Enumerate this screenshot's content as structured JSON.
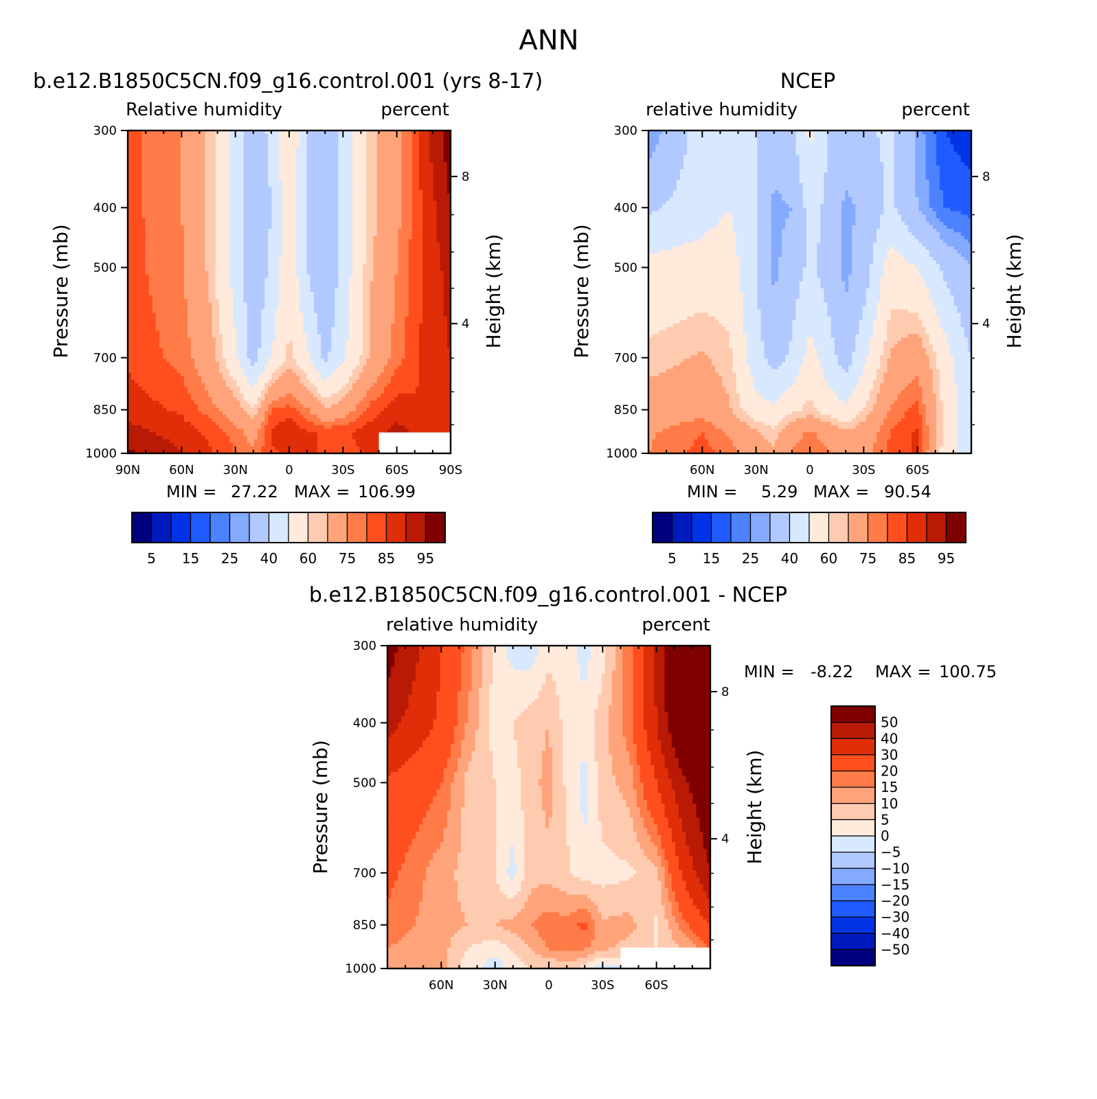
{
  "figure_title": "ANN",
  "chart_data": [
    {
      "type": "heatmap",
      "title": "b.e12.B1850C5CN.f09_g16.control.001 (yrs 8-17)",
      "left_label": "Relative humidity",
      "right_label": "percent",
      "ylabel": "Pressure (mb)",
      "y2label": "Height (km)",
      "pressure_ticks": [
        300,
        400,
        500,
        700,
        850,
        1000
      ],
      "pressure_range": [
        300,
        1000
      ],
      "height_ticks": [
        8,
        4
      ],
      "x_ticks": [
        "90N",
        "60N",
        "30N",
        "0",
        "30S",
        "60S",
        "90S"
      ],
      "x_range": [
        "90N",
        "90S"
      ],
      "stats": {
        "min_label": "MIN =",
        "min": "27.22",
        "max_label": "MAX =",
        "max": "106.99"
      },
      "colorbar": {
        "orientation": "horizontal",
        "levels": [
          5,
          10,
          15,
          20,
          25,
          30,
          40,
          50,
          60,
          65,
          75,
          80,
          85,
          90,
          95
        ],
        "tick_labels": [
          "5",
          "15",
          "25",
          "40",
          "60",
          "75",
          "85",
          "95"
        ]
      },
      "field": {
        "lat": [
          90,
          60,
          45,
          30,
          20,
          10,
          0,
          -10,
          -20,
          -30,
          -45,
          -60,
          -75,
          -90
        ],
        "pressure": [
          300,
          400,
          500,
          700,
          850,
          925,
          1000
        ],
        "values": [
          [
            82,
            75,
            64,
            45,
            35,
            42,
            60,
            40,
            35,
            42,
            62,
            72,
            88,
            98
          ],
          [
            82,
            75,
            64,
            45,
            32,
            40,
            58,
            40,
            30,
            42,
            62,
            73,
            86,
            95
          ],
          [
            82,
            76,
            64,
            46,
            32,
            42,
            58,
            40,
            30,
            44,
            64,
            75,
            86,
            92
          ],
          [
            84,
            78,
            70,
            52,
            36,
            50,
            62,
            52,
            38,
            48,
            66,
            78,
            86,
            90
          ],
          [
            88,
            84,
            78,
            70,
            60,
            80,
            82,
            76,
            66,
            70,
            82,
            88,
            85,
            86
          ],
          [
            92,
            88,
            84,
            78,
            72,
            86,
            90,
            86,
            84,
            84,
            88,
            92,
            88,
            86
          ],
          [
            96,
            90,
            86,
            80,
            76,
            84,
            86,
            86,
            84,
            82,
            86,
            92,
            88,
            86
          ]
        ],
        "masked_region": {
          "lat_from": -50,
          "lat_to": -90,
          "pressure_from": 925,
          "pressure_to": 1000
        }
      }
    },
    {
      "type": "heatmap",
      "title": "NCEP",
      "left_label": "relative humidity",
      "right_label": "percent",
      "ylabel": "Pressure (mb)",
      "y2label": "Height (km)",
      "pressure_ticks": [
        300,
        400,
        500,
        700,
        850,
        1000
      ],
      "pressure_range": [
        300,
        1000
      ],
      "height_ticks": [
        8,
        4
      ],
      "x_ticks": [
        "60N",
        "30N",
        "0",
        "30S",
        "60S"
      ],
      "x_range": [
        "90N",
        "90S"
      ],
      "stats": {
        "min_label": "MIN =",
        "min": "5.29",
        "max_label": "MAX =",
        "max": "90.54"
      },
      "colorbar": {
        "orientation": "horizontal",
        "levels": [
          5,
          10,
          15,
          20,
          25,
          30,
          40,
          50,
          60,
          65,
          75,
          80,
          85,
          90,
          95
        ],
        "tick_labels": [
          "5",
          "15",
          "25",
          "40",
          "60",
          "75",
          "85",
          "95"
        ]
      },
      "field": {
        "lat": [
          90,
          60,
          45,
          30,
          20,
          10,
          0,
          -10,
          -20,
          -30,
          -45,
          -60,
          -75,
          -90
        ],
        "pressure": [
          300,
          400,
          500,
          700,
          850,
          925,
          1000
        ],
        "values": [
          [
            25,
            45,
            45,
            40,
            35,
            38,
            52,
            40,
            35,
            38,
            42,
            28,
            15,
            12
          ],
          [
            38,
            46,
            50,
            40,
            28,
            30,
            44,
            38,
            28,
            32,
            42,
            30,
            20,
            18
          ],
          [
            54,
            55,
            56,
            40,
            28,
            35,
            42,
            36,
            28,
            34,
            56,
            50,
            38,
            30
          ],
          [
            62,
            66,
            62,
            44,
            36,
            42,
            54,
            45,
            35,
            48,
            66,
            72,
            55,
            40
          ],
          [
            70,
            72,
            66,
            54,
            52,
            58,
            62,
            56,
            52,
            60,
            76,
            82,
            58,
            42
          ],
          [
            74,
            80,
            74,
            66,
            62,
            72,
            76,
            72,
            66,
            70,
            80,
            86,
            58,
            42
          ],
          [
            75,
            82,
            78,
            70,
            66,
            76,
            80,
            76,
            70,
            72,
            82,
            86,
            56,
            42
          ]
        ]
      }
    },
    {
      "type": "heatmap",
      "title": "b.e12.B1850C5CN.f09_g16.control.001 - NCEP",
      "left_label": "relative humidity",
      "right_label": "percent",
      "ylabel": "Pressure (mb)",
      "y2label": "Height (km)",
      "pressure_ticks": [
        300,
        400,
        500,
        700,
        850,
        1000
      ],
      "pressure_range": [
        300,
        1000
      ],
      "height_ticks": [
        8,
        4
      ],
      "x_ticks": [
        "60N",
        "30N",
        "0",
        "30S",
        "60S"
      ],
      "x_range": [
        "90N",
        "90S"
      ],
      "stats": {
        "min_label": "MIN =",
        "min": "-8.22",
        "max_label": "MAX =",
        "max": "100.75"
      },
      "colorbar": {
        "orientation": "vertical",
        "levels": [
          -50,
          -40,
          -30,
          -20,
          -15,
          -10,
          -5,
          0,
          5,
          10,
          15,
          20,
          30,
          40,
          50
        ],
        "tick_labels": [
          "50",
          "40",
          "30",
          "20",
          "15",
          "10",
          "5",
          "0",
          "−5",
          "−10",
          "−15",
          "−20",
          "−30",
          "−40",
          "−50"
        ]
      },
      "field": {
        "lat": [
          90,
          60,
          45,
          30,
          20,
          10,
          0,
          -10,
          -20,
          -30,
          -45,
          -60,
          -75,
          -90
        ],
        "pressure": [
          300,
          400,
          500,
          700,
          850,
          925,
          1000
        ],
        "values": [
          [
            55,
            30,
            18,
            3,
            -2,
            -3,
            3,
            2,
            -2,
            3,
            18,
            42,
            75,
            90
          ],
          [
            44,
            28,
            14,
            3,
            5,
            8,
            10,
            3,
            2,
            8,
            18,
            40,
            65,
            80
          ],
          [
            28,
            20,
            8,
            5,
            3,
            8,
            12,
            4,
            -2,
            8,
            12,
            30,
            48,
            60
          ],
          [
            22,
            12,
            8,
            5,
            -2,
            8,
            8,
            6,
            2,
            3,
            4,
            8,
            32,
            50
          ],
          [
            18,
            12,
            10,
            10,
            12,
            15,
            18,
            17,
            22,
            11,
            12,
            4,
            18,
            30
          ],
          [
            15,
            12,
            5,
            2,
            6,
            10,
            16,
            17,
            16,
            12,
            8,
            5,
            10,
            20
          ],
          [
            15,
            12,
            2,
            -3,
            2,
            5,
            4,
            8,
            2,
            -4,
            1,
            5,
            14,
            30
          ]
        ],
        "masked_region": {
          "lat_from": -40,
          "lat_to": -90,
          "pressure_from": 925,
          "pressure_to": 1000
        }
      }
    }
  ],
  "palettes": {
    "abs": [
      "#00007f",
      "#001bbd",
      "#0033e6",
      "#1f5bff",
      "#4d82ff",
      "#83aaff",
      "#b2c9ff",
      "#d8e8ff",
      "#ffeadb",
      "#ffcbb0",
      "#ffa47a",
      "#ff7b48",
      "#ff4f1f",
      "#df2e08",
      "#b81a05",
      "#7f0000"
    ],
    "diff": [
      "#00007f",
      "#001bbd",
      "#0033e6",
      "#1f5bff",
      "#4d82ff",
      "#83aaff",
      "#b2c9ff",
      "#d8e8ff",
      "#ffeadb",
      "#ffcbb0",
      "#ffa47a",
      "#ff7b48",
      "#ff4f1f",
      "#df2e08",
      "#b81a05",
      "#7f0000"
    ]
  }
}
